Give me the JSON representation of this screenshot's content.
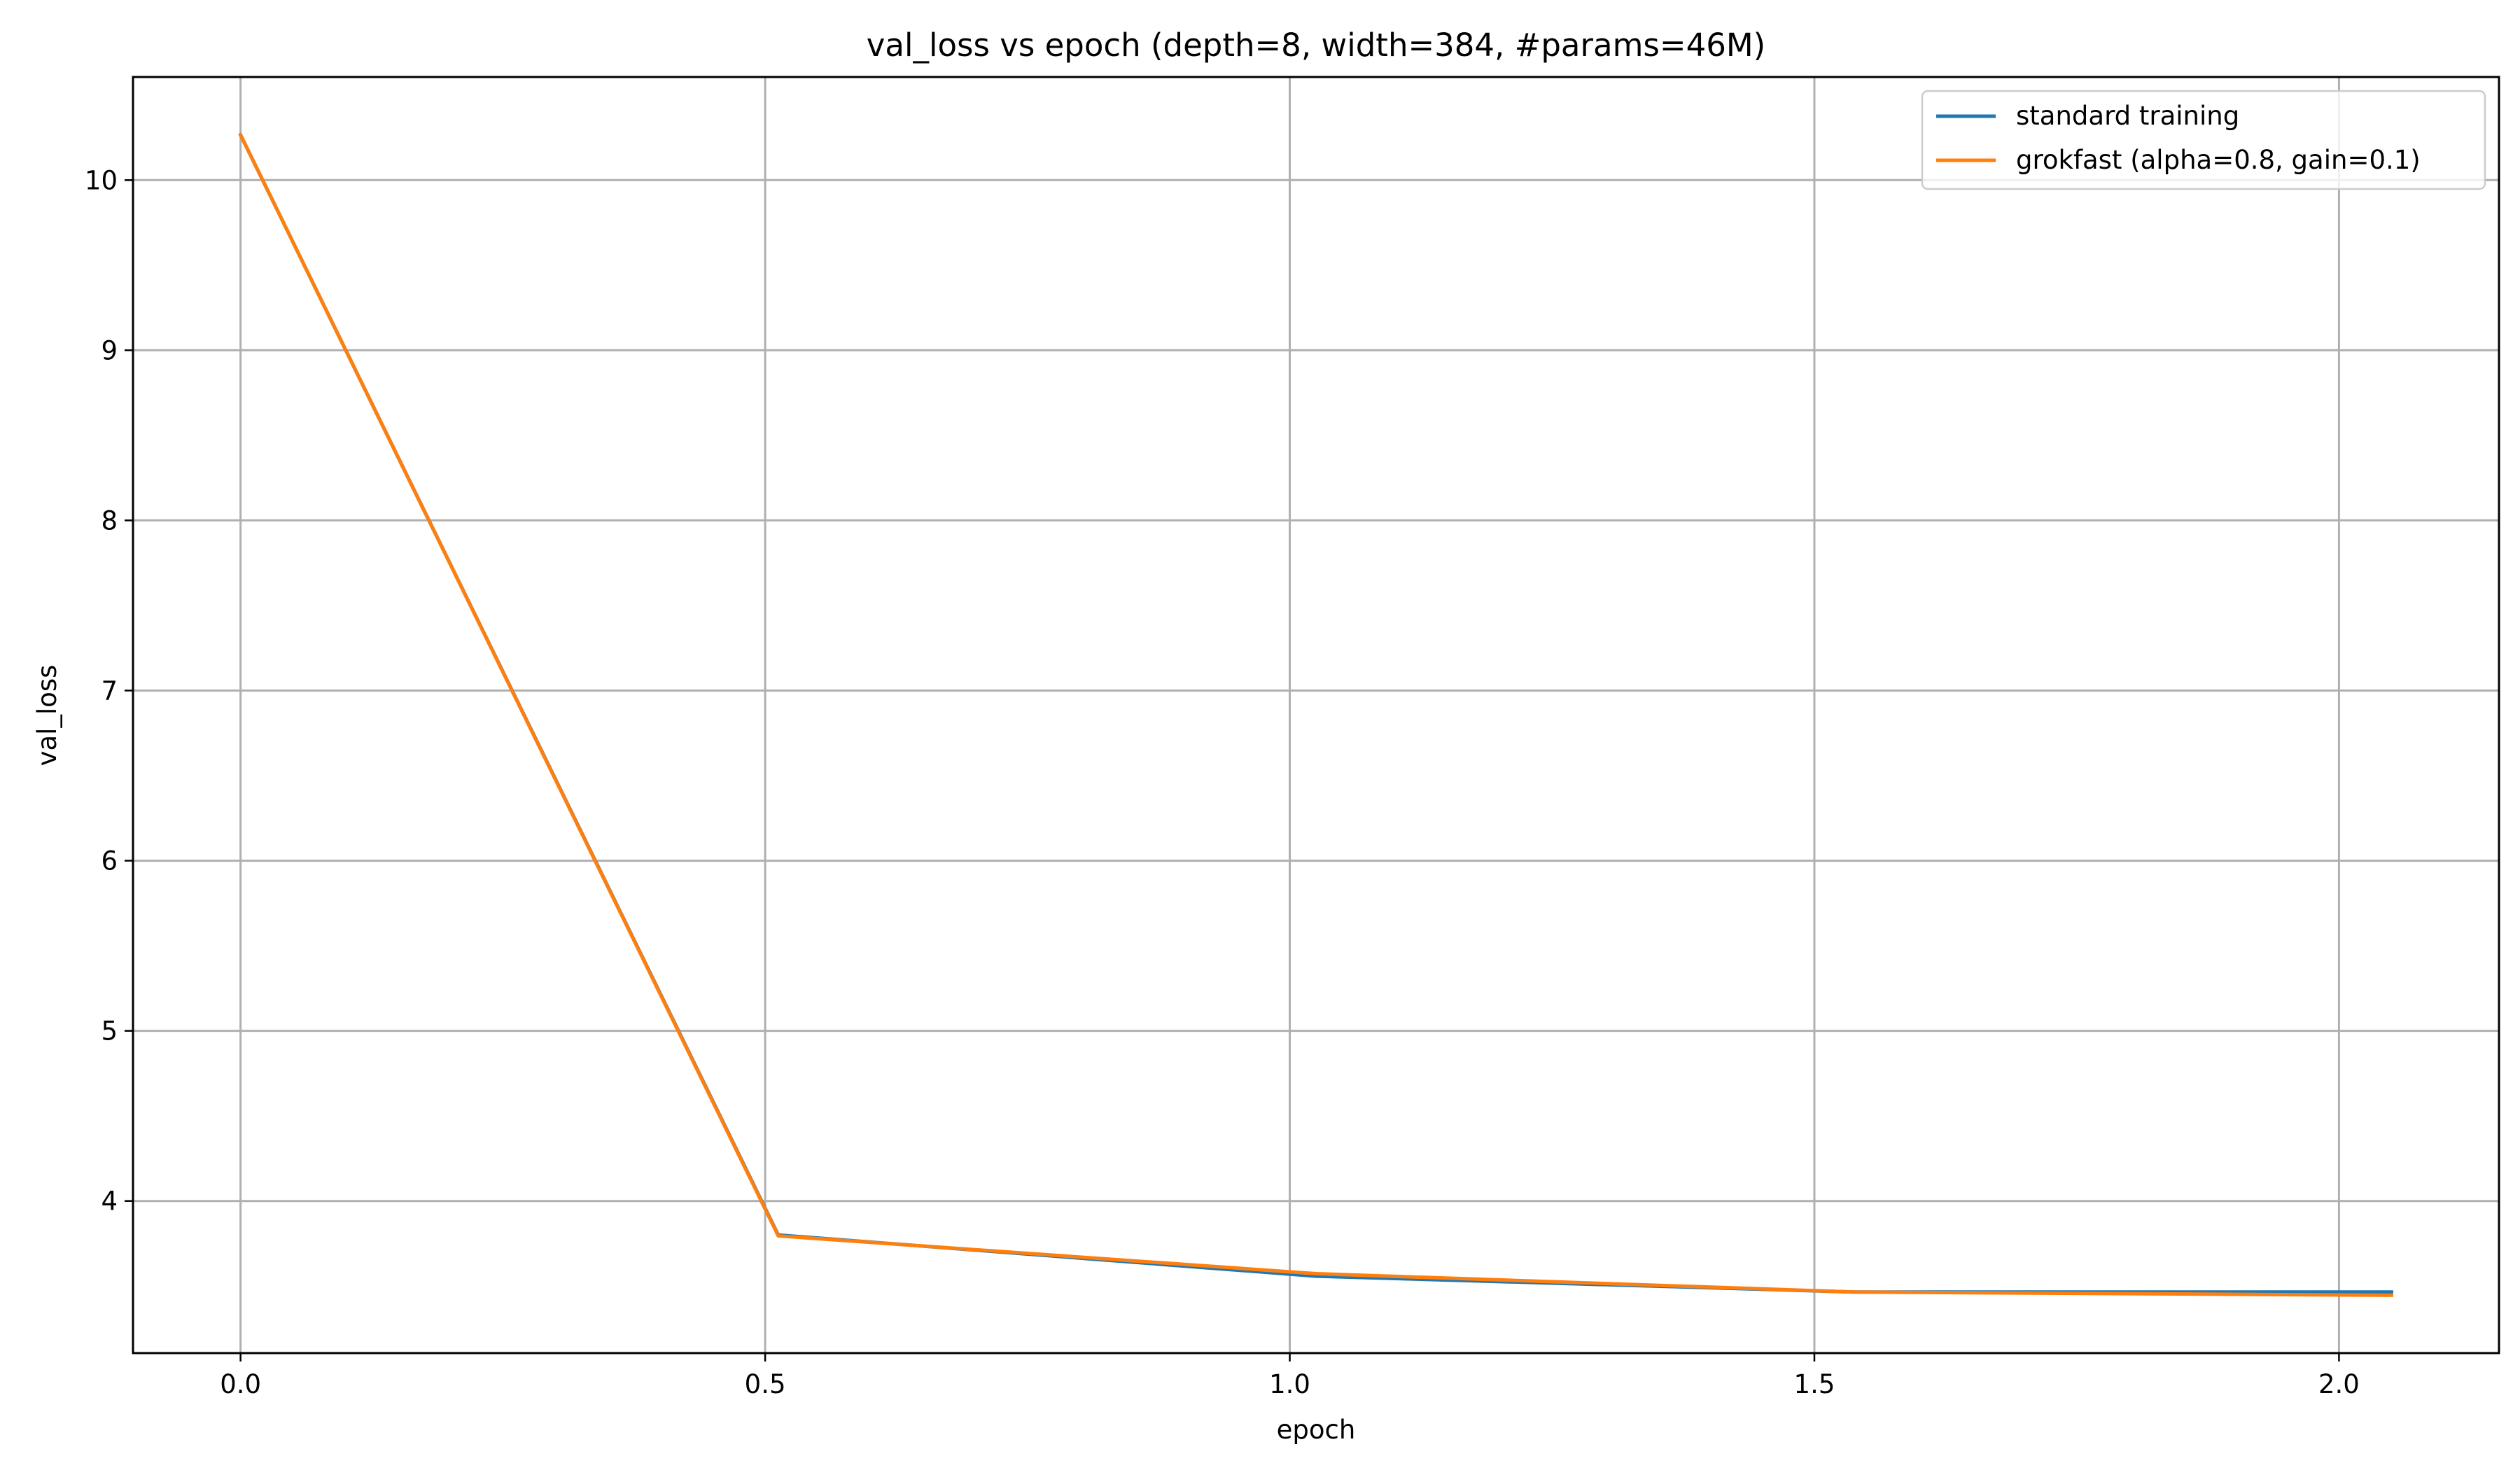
{
  "chart_data": {
    "type": "line",
    "title": "val_loss vs epoch (depth=8, width=384, #params=46M)",
    "xlabel": "epoch",
    "ylabel": "val_loss",
    "xlim": [
      -0.1025,
      2.1525
    ],
    "ylim": [
      3.106,
      10.606
    ],
    "xticks": [
      0.0,
      0.5,
      1.0,
      1.5,
      2.0
    ],
    "xtick_labels": [
      "0.0",
      "0.5",
      "1.0",
      "1.5",
      "2.0"
    ],
    "yticks": [
      4,
      5,
      6,
      7,
      8,
      9,
      10
    ],
    "ytick_labels": [
      "4",
      "5",
      "6",
      "7",
      "8",
      "9",
      "10"
    ],
    "grid": true,
    "legend_position": "top-right",
    "series": [
      {
        "name": "standard training",
        "color": "#1f77b4",
        "x": [
          0.0,
          0.5125,
          1.025,
          1.5375,
          2.05
        ],
        "y": [
          10.266,
          3.8,
          3.558,
          3.465,
          3.465
        ]
      },
      {
        "name": "grokfast (alpha=0.8, gain=0.1)",
        "color": "#ff7f0e",
        "x": [
          0.0,
          0.5125,
          1.025,
          1.5375,
          2.05
        ],
        "y": [
          10.266,
          3.795,
          3.573,
          3.465,
          3.446
        ]
      }
    ]
  }
}
